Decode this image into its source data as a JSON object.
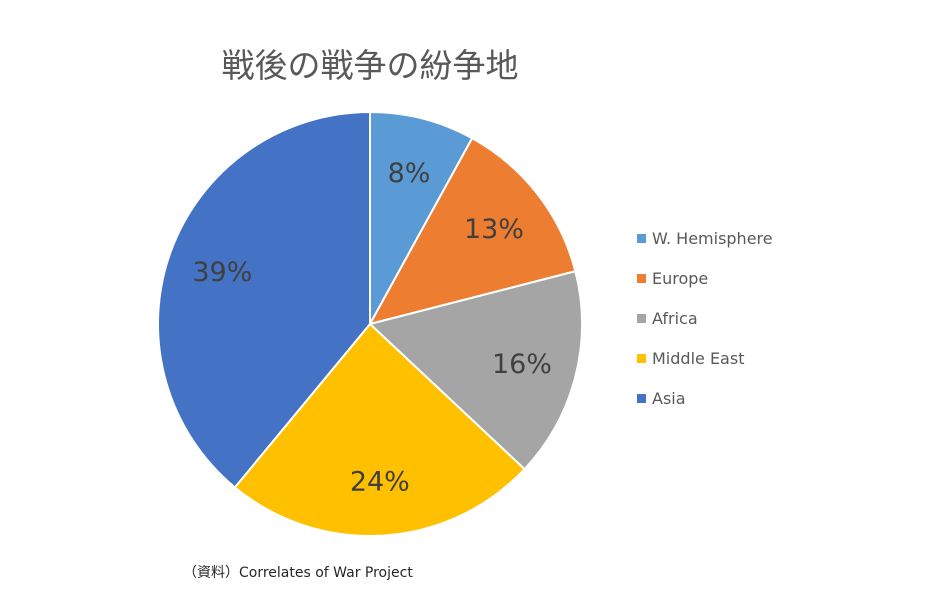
{
  "chart_data": {
    "type": "pie",
    "title": "戦後の戦争の紛争地",
    "categories": [
      "W. Hemisphere",
      "Europe",
      "Africa",
      "Middle East",
      "Asia"
    ],
    "values": [
      8,
      13,
      16,
      24,
      39
    ],
    "value_labels": [
      "8%",
      "13%",
      "16%",
      "24%",
      "39%"
    ],
    "colors": [
      "#5b9bd5",
      "#ed7d31",
      "#a5a5a5",
      "#ffc000",
      "#4472c4"
    ],
    "start_angle_deg": 0,
    "direction": "clockwise",
    "legend_position": "right"
  },
  "source_note": "（資料）Correlates of War Project"
}
